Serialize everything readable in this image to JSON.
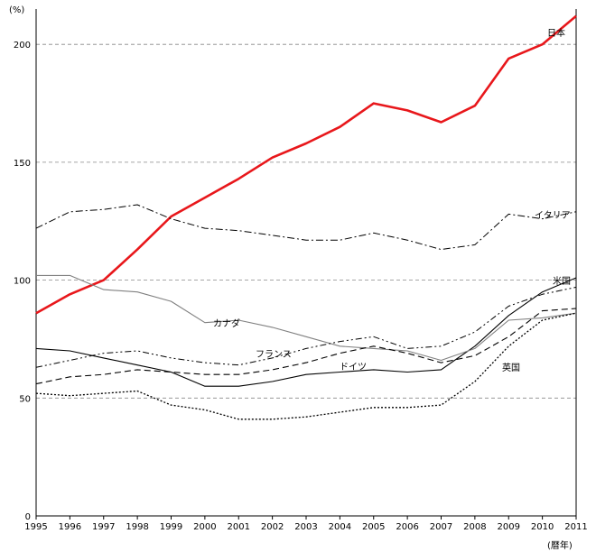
{
  "chart_data": {
    "type": "line",
    "title": "",
    "y_unit": "(%)",
    "x_unit": "(暦年)",
    "x": [
      1995,
      1996,
      1997,
      1998,
      1999,
      2000,
      2001,
      2002,
      2003,
      2004,
      2005,
      2006,
      2007,
      2008,
      2009,
      2010,
      2011
    ],
    "ylim": [
      0,
      215
    ],
    "yticks": [
      0,
      50,
      100,
      150,
      200
    ],
    "grid": "dashed horizontal at 50, 100, 150, 200",
    "series": [
      {
        "key": "japan",
        "name": "日本",
        "color": "#e8171b",
        "values": [
          86,
          94,
          100,
          113,
          127,
          135,
          143,
          152,
          158,
          165,
          175,
          172,
          167,
          174,
          194,
          200,
          212
        ]
      },
      {
        "key": "italy",
        "name": "イタリア",
        "color": "#000000",
        "values": [
          122,
          129,
          130,
          132,
          126,
          122,
          121,
          119,
          117,
          117,
          120,
          117,
          113,
          115,
          128,
          126,
          129
        ]
      },
      {
        "key": "usa",
        "name": "米国",
        "color": "#000000",
        "values": [
          71,
          70,
          67,
          64,
          61,
          55,
          55,
          57,
          60,
          61,
          62,
          61,
          62,
          72,
          85,
          95,
          101
        ]
      },
      {
        "key": "canada",
        "name": "カナダ",
        "color": "#808080",
        "values": [
          102,
          102,
          96,
          95,
          91,
          82,
          83,
          80,
          76,
          72,
          71,
          70,
          66,
          71,
          83,
          84,
          86
        ]
      },
      {
        "key": "france",
        "name": "フランス",
        "color": "#000000",
        "values": [
          63,
          66,
          69,
          70,
          67,
          65,
          64,
          67,
          71,
          74,
          76,
          71,
          72,
          78,
          89,
          94,
          97
        ]
      },
      {
        "key": "germany",
        "name": "ドイツ",
        "color": "#000000",
        "values": [
          56,
          59,
          60,
          62,
          61,
          60,
          60,
          62,
          65,
          69,
          72,
          69,
          65,
          68,
          76,
          87,
          88
        ]
      },
      {
        "key": "uk",
        "name": "英国",
        "color": "#000000",
        "values": [
          52,
          51,
          52,
          53,
          47,
          45,
          41,
          41,
          42,
          44,
          46,
          46,
          47,
          57,
          72,
          83,
          86
        ]
      }
    ]
  }
}
